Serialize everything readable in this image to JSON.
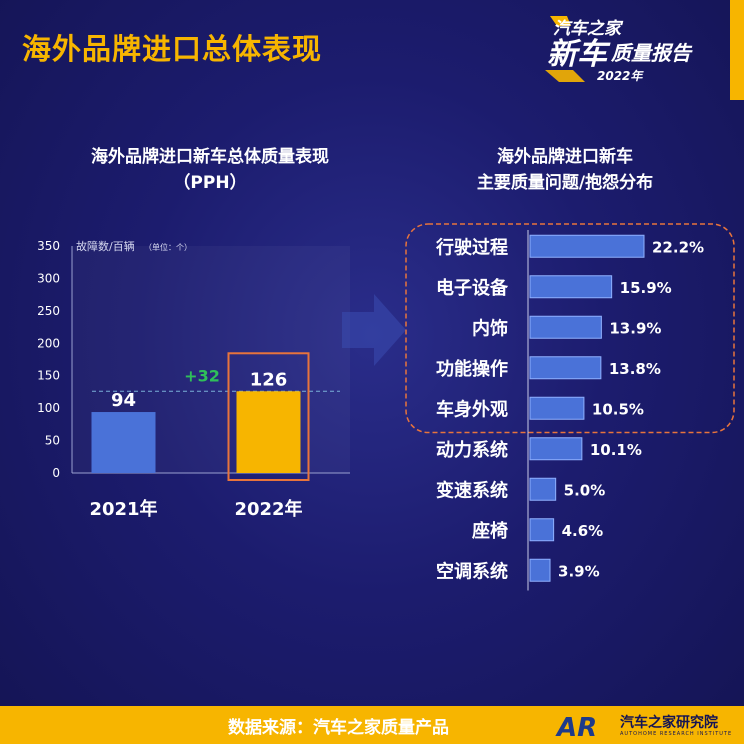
{
  "header": {
    "title": "海外品牌进口总体表现",
    "logo_line1": "汽车之家",
    "logo_line2": "新车",
    "logo_line3": "质量报告",
    "logo_year": "2022年"
  },
  "colors": {
    "accent": "#f7b500",
    "bar_blue": "#4a72d8",
    "bar_highlight": "#f7b500",
    "diff_green": "#2fbf5a",
    "dashed": "#e8743c"
  },
  "chart_data": [
    {
      "type": "bar",
      "title": "海外品牌进口新车总体质量表现",
      "subtitle": "（PPH）",
      "ylabel": "故障数/百辆",
      "ylabel_unit": "（单位：个）",
      "categories": [
        "2021年",
        "2022年"
      ],
      "values": [
        94,
        126
      ],
      "ylim": [
        0,
        350
      ],
      "yticks": [
        0,
        50,
        100,
        150,
        200,
        250,
        300,
        350
      ],
      "annotation": "+32",
      "highlight": "2022年"
    },
    {
      "type": "bar",
      "orientation": "horizontal",
      "title": "海外品牌进口新车",
      "subtitle": "主要质量问题/抱怨分布",
      "categories": [
        "行驶过程",
        "电子设备",
        "内饰",
        "功能操作",
        "车身外观",
        "动力系统",
        "变速系统",
        "座椅",
        "空调系统"
      ],
      "values": [
        22.2,
        15.9,
        13.9,
        13.8,
        10.5,
        10.1,
        5.0,
        4.6,
        3.9
      ],
      "value_labels": [
        "22.2%",
        "15.9%",
        "13.9%",
        "13.8%",
        "10.5%",
        "10.1%",
        "5.0%",
        "4.6%",
        "3.9%"
      ],
      "highlighted_count": 5
    }
  ],
  "footer": {
    "source": "数据来源：汽车之家质量产品",
    "org": "汽车之家研究院",
    "org_en": "AUTOHOME RESEARCH INSTITUTE",
    "org_logo": "AR"
  }
}
